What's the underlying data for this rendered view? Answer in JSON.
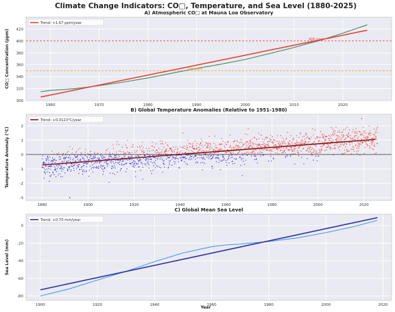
{
  "figure": {
    "title": "Climate Change Indicators: CO□, Temperature, and Sea Level (1880-2025)",
    "xlabel": "Year"
  },
  "chart_data": [
    {
      "type": "line",
      "title": "A) Atmospheric CO□ at Mauna Loa Observatory",
      "xlabel": "",
      "ylabel": "CO□ Concentration (ppm)",
      "xlim": [
        1955,
        2030
      ],
      "ylim": [
        300,
        440
      ],
      "xticks": [
        1960,
        1970,
        1980,
        1990,
        2000,
        2010,
        2020
      ],
      "yticks": [
        300,
        320,
        340,
        360,
        380,
        400,
        420
      ],
      "grid": true,
      "legend": "top-left",
      "series": [
        {
          "name": "",
          "color": "#3c8c5c",
          "x": [
            1958,
            1960,
            1965,
            1970,
            1975,
            1980,
            1985,
            1990,
            1995,
            2000,
            2005,
            2010,
            2013,
            2015,
            2020,
            2025
          ],
          "y": [
            315,
            317,
            320,
            325,
            331,
            338,
            346,
            354,
            361,
            369,
            379,
            389,
            396,
            400,
            413,
            427
          ]
        },
        {
          "name": "Trend: +1.67 ppm/year",
          "color": "#e8423c",
          "x": [
            1958,
            2025
          ],
          "y": [
            306,
            418
          ]
        }
      ],
      "hlines": [
        {
          "y": 400,
          "color": "#e8423c",
          "label": "400 ppm"
        },
        {
          "y": 350,
          "color": "#f0a830",
          "label": "350 ppm"
        }
      ]
    },
    {
      "type": "scatter",
      "title": "B) Global Temperature Anomalies (Relative to 1951-1980)",
      "xlabel": "",
      "ylabel": "Temperature Anomaly (°C)",
      "xlim": [
        1873,
        2032
      ],
      "ylim": [
        -3.2,
        2.8
      ],
      "xticks": [
        1880,
        1900,
        1920,
        1940,
        1960,
        1980,
        2000,
        2020
      ],
      "yticks": [
        -3,
        -2,
        -1,
        0,
        1,
        2
      ],
      "grid": true,
      "legend": "top-left",
      "colors": {
        "positive": "#e8423c",
        "negative": "#2a2ae0",
        "trend": "#8b1414",
        "zero": "#444444"
      },
      "trend": {
        "name": "Trend: +0.0123°C/year",
        "x": [
          1880,
          2025
        ],
        "y": [
          -0.73,
          1.05
        ]
      },
      "zero_line": 0,
      "points_per_year": 12,
      "noise_sd": 0.45,
      "x_start": 1880,
      "x_end": 2025,
      "outliers": [
        {
          "x": 1892,
          "y": -3.0
        },
        {
          "x": 2019,
          "y": 2.5
        }
      ]
    },
    {
      "type": "line",
      "title": "C) Global Mean Sea Level",
      "xlabel": "Year",
      "ylabel": "Sea Level (mm)",
      "xlim": [
        1895,
        2023
      ],
      "ylim": [
        -85,
        13
      ],
      "xticks": [
        1900,
        1920,
        1940,
        1960,
        1980,
        2000,
        2020
      ],
      "yticks": [
        -80,
        -60,
        -40,
        -20,
        0
      ],
      "grid": true,
      "legend": "top-left",
      "series": [
        {
          "name": "",
          "color": "#4a9ae8",
          "x": [
            1900,
            1910,
            1920,
            1930,
            1940,
            1950,
            1960,
            1965,
            1970,
            1980,
            1990,
            2000,
            2010,
            2018
          ],
          "y": [
            -80,
            -72,
            -62,
            -52,
            -41,
            -31,
            -24,
            -22,
            -21,
            -18,
            -14,
            -8,
            -1,
            6
          ]
        },
        {
          "name": "Trend: +0.70 mm/year",
          "color": "#2e2e9e",
          "x": [
            1900,
            2018
          ],
          "y": [
            -73,
            9
          ]
        }
      ]
    }
  ]
}
